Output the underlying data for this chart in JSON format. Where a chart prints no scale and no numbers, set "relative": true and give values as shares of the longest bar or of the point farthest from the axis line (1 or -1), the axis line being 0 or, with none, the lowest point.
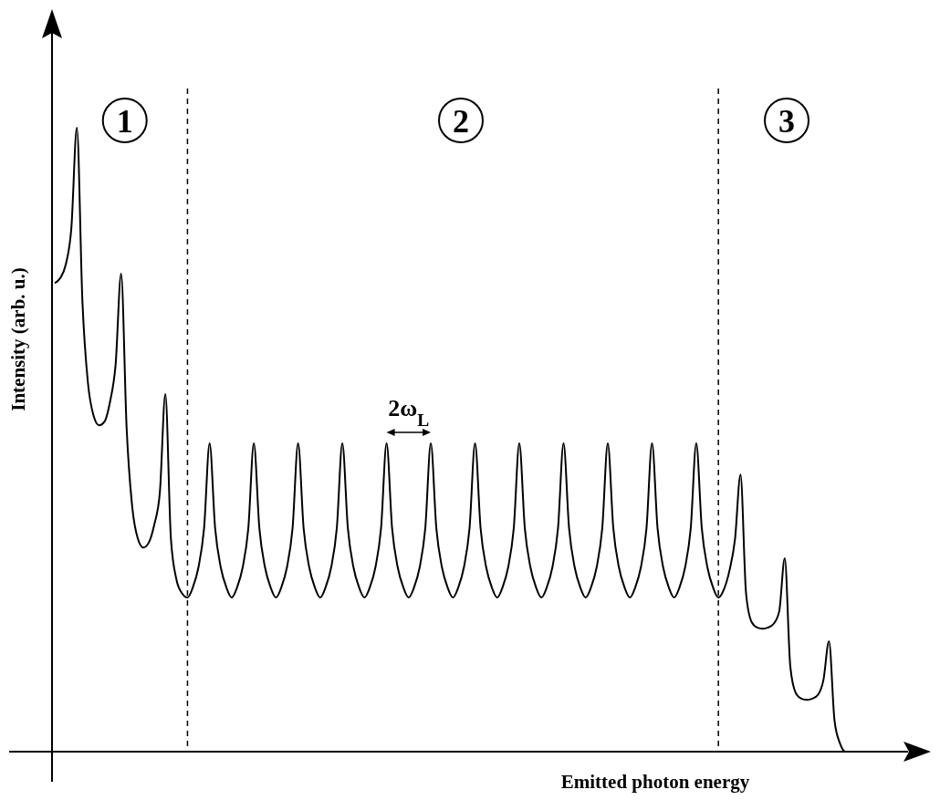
{
  "chart_data": {
    "type": "line",
    "relative": true,
    "xlabel": "Emitted photon energy",
    "ylabel": "Intensity (arb. u.)",
    "categories": [
      null,
      null,
      null,
      null,
      null,
      null,
      null,
      null,
      null,
      null,
      null,
      null,
      null,
      null,
      null,
      null,
      null,
      null,
      null,
      null,
      null,
      null,
      null,
      null,
      null,
      null,
      null,
      null,
      null,
      null,
      null,
      null,
      null,
      null,
      null,
      null,
      null,
      null,
      null,
      null,
      null,
      null,
      null,
      null,
      null,
      null,
      null,
      null,
      null,
      null,
      null,
      null,
      null,
      null,
      null,
      null,
      null,
      null,
      null,
      null,
      null,
      null,
      null,
      null,
      null,
      null,
      null,
      null,
      null,
      null,
      null,
      null,
      null,
      null,
      null,
      null,
      null,
      null,
      null,
      null,
      null,
      null,
      null,
      null,
      null,
      null,
      null,
      null,
      null,
      null,
      null,
      null,
      null,
      null,
      null,
      null,
      null,
      null,
      null,
      null,
      null,
      null,
      null,
      null,
      null,
      null,
      null,
      null,
      null,
      null,
      null,
      null,
      null,
      null,
      null,
      null,
      null,
      null,
      null,
      null,
      null,
      null,
      null,
      null,
      null,
      null,
      null,
      null,
      null,
      null,
      null,
      null,
      null,
      null,
      null,
      null,
      null,
      null,
      null,
      null,
      null,
      null,
      null,
      null,
      null
    ],
    "series": [
      {
        "color": "#000000",
        "values": [
          0.751,
          0.759,
          0.781,
          0.839,
          1.0,
          0.722,
          0.591,
          0.539,
          0.523,
          0.529,
          0.561,
          0.62,
          0.766,
          0.518,
          0.393,
          0.342,
          0.327,
          0.335,
          0.364,
          0.415,
          0.573,
          0.342,
          0.276,
          0.254,
          0.247,
          0.264,
          0.296,
          0.358,
          0.494,
          0.358,
          0.296,
          0.264,
          0.247,
          0.264,
          0.296,
          0.358,
          0.494,
          0.358,
          0.296,
          0.264,
          0.247,
          0.264,
          0.296,
          0.358,
          0.494,
          0.358,
          0.296,
          0.264,
          0.247,
          0.264,
          0.296,
          0.358,
          0.494,
          0.358,
          0.296,
          0.264,
          0.247,
          0.264,
          0.296,
          0.358,
          0.494,
          0.358,
          0.296,
          0.264,
          0.247,
          0.264,
          0.296,
          0.358,
          0.494,
          0.358,
          0.296,
          0.264,
          0.247,
          0.264,
          0.296,
          0.358,
          0.494,
          0.358,
          0.296,
          0.264,
          0.247,
          0.264,
          0.296,
          0.358,
          0.494,
          0.358,
          0.296,
          0.264,
          0.247,
          0.264,
          0.296,
          0.358,
          0.494,
          0.358,
          0.296,
          0.264,
          0.247,
          0.264,
          0.296,
          0.358,
          0.494,
          0.358,
          0.296,
          0.264,
          0.247,
          0.264,
          0.296,
          0.358,
          0.494,
          0.358,
          0.296,
          0.264,
          0.247,
          0.264,
          0.296,
          0.358,
          0.494,
          0.358,
          0.296,
          0.264,
          0.247,
          0.26,
          0.29,
          0.34,
          0.444,
          0.254,
          0.208,
          0.199,
          0.197,
          0.199,
          0.205,
          0.225,
          0.31,
          0.137,
          0.094,
          0.085,
          0.083,
          0.085,
          0.091,
          0.115,
          0.177,
          0.05,
          0.013,
          0,
          0
        ]
      }
    ],
    "annotations": [
      "1",
      "2",
      "3",
      "2ω$_{L}$"
    ]
  }
}
